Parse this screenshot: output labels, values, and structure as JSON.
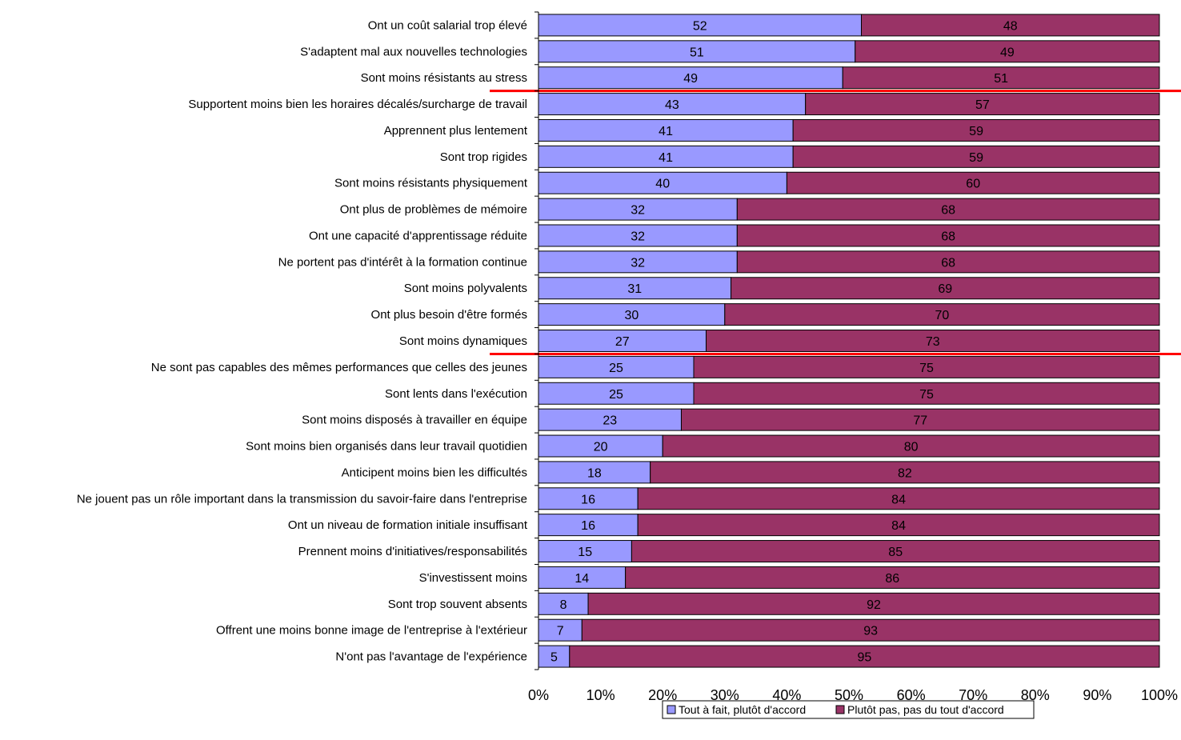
{
  "chart_data": {
    "type": "bar",
    "orientation": "horizontal",
    "stacked": true,
    "percent_stacked": true,
    "categories": [
      "Ont un coût salarial trop élevé",
      "S'adaptent mal aux nouvelles technologies",
      "Sont moins résistants au stress",
      "Supportent moins bien les horaires décalés/surcharge de travail",
      "Apprennent plus lentement",
      "Sont trop rigides",
      "Sont moins résistants physiquement",
      "Ont plus de problèmes de mémoire",
      "Ont une capacité d'apprentissage réduite",
      "Ne portent pas d'intérêt à la formation continue",
      "Sont moins polyvalents",
      "Ont plus besoin d'être formés",
      "Sont moins dynamiques",
      "Ne sont pas capables des mêmes performances que celles des jeunes",
      "Sont lents dans l'exécution",
      "Sont moins disposés à travailler en équipe",
      "Sont moins bien organisés dans leur travail quotidien",
      "Anticipent moins bien les difficultés",
      "Ne jouent pas un rôle important dans la transmission du savoir-faire dans l'entreprise",
      "Ont un niveau de formation initiale insuffisant",
      "Prennent moins d'initiatives/responsabilités",
      "S'investissent moins",
      "Sont trop souvent absents",
      "Offrent une moins bonne image de l'entreprise à l'extérieur",
      "N'ont pas l'avantage de l'expérience"
    ],
    "series": [
      {
        "name": "Tout à fait, plutôt d'accord",
        "color": "#9999ff",
        "values": [
          52,
          51,
          49,
          43,
          41,
          41,
          40,
          32,
          32,
          32,
          31,
          30,
          27,
          25,
          25,
          23,
          20,
          18,
          16,
          16,
          15,
          14,
          8,
          7,
          5
        ]
      },
      {
        "name": "Plutôt pas, pas du tout d'accord",
        "color": "#993366",
        "values": [
          48,
          49,
          51,
          57,
          59,
          59,
          60,
          68,
          68,
          68,
          69,
          70,
          73,
          75,
          75,
          77,
          80,
          82,
          84,
          84,
          85,
          86,
          92,
          93,
          95
        ]
      }
    ],
    "x_ticks": [
      "0%",
      "10%",
      "20%",
      "30%",
      "40%",
      "50%",
      "60%",
      "70%",
      "80%",
      "90%",
      "100%"
    ],
    "xlim": [
      0,
      100
    ],
    "separator_lines": {
      "color": "#ff0000",
      "after_categories": [
        "Sont moins résistants au stress",
        "Sont moins dynamiques"
      ]
    },
    "legend": {
      "position": "bottom"
    },
    "grid": false
  }
}
